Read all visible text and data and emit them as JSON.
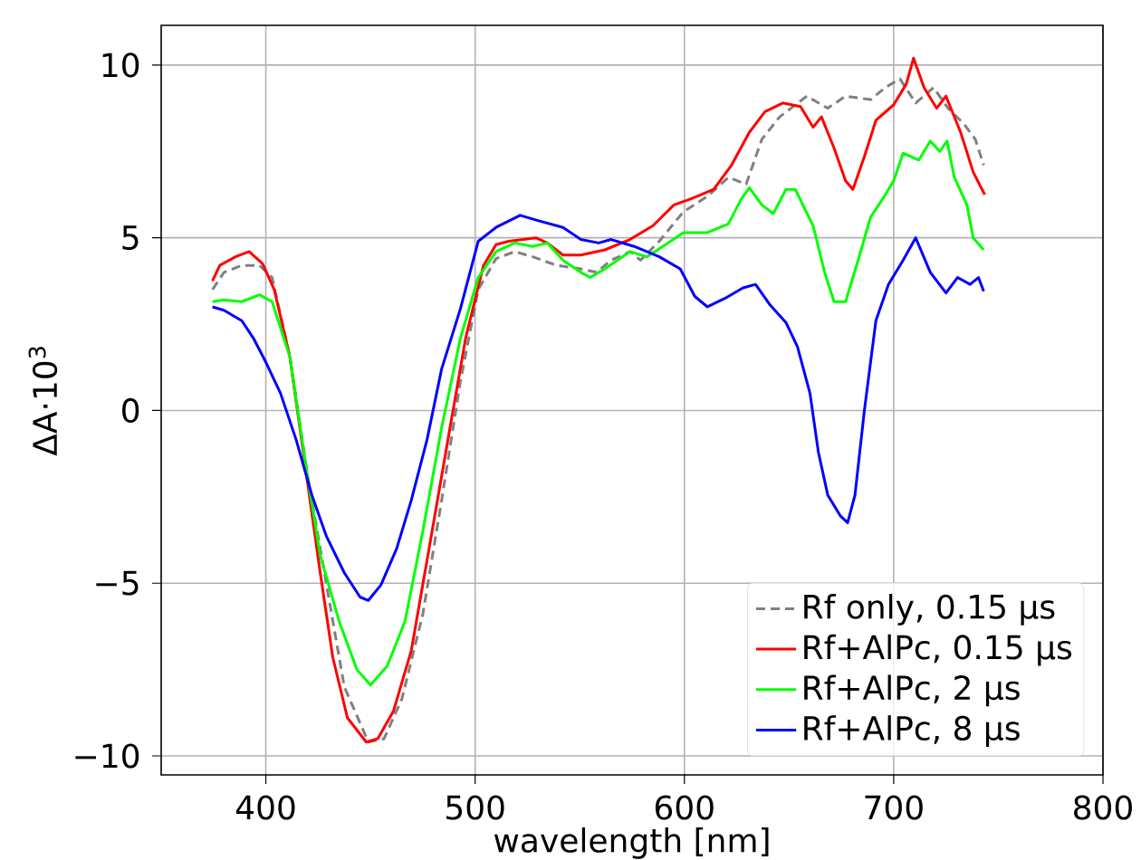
{
  "chart_data": {
    "type": "line",
    "xlabel": "wavelength [nm]",
    "ylabel": "ΔA·10$^{3}$",
    "xlim": [
      350,
      800
    ],
    "ylim": [
      -10.55,
      11.15
    ],
    "xticks": [
      400,
      500,
      600,
      700,
      800
    ],
    "yticks": [
      {
        "value": -10,
        "label": "−10"
      },
      {
        "value": -5,
        "label": "−5"
      },
      0,
      5,
      10
    ],
    "grid": true,
    "legend": "bottom right",
    "marker": "none",
    "series": [
      {
        "name": "Rf only, 0.15 μs",
        "color": "#808080",
        "line_style": "dashed",
        "x": [
          374.5,
          380,
          388.5,
          397,
          403,
          411.5,
          420,
          429,
          437.5,
          449,
          456.5,
          465,
          475,
          484,
          493,
          501.5,
          510,
          519,
          527.5,
          539,
          550.5,
          558,
          565,
          574,
          579,
          588,
          599.5,
          611,
          621,
          629.5,
          637,
          645.5,
          658.5,
          668.5,
          677,
          689,
          696,
          703,
          710.5,
          719,
          726,
          733.5,
          739,
          743
        ],
        "values": [
          3.5,
          4.0,
          4.2,
          4.2,
          3.85,
          1.55,
          -1.9,
          -5.05,
          -8.0,
          -9.6,
          -9.5,
          -8.35,
          -5.9,
          -2.6,
          0.85,
          3.5,
          4.4,
          4.6,
          4.45,
          4.2,
          4.1,
          4.0,
          4.35,
          4.6,
          4.35,
          4.9,
          5.75,
          6.2,
          6.75,
          6.55,
          7.85,
          8.5,
          9.1,
          8.75,
          9.1,
          9.0,
          9.35,
          9.6,
          8.9,
          9.35,
          8.75,
          8.3,
          7.85,
          7.1
        ]
      },
      {
        "name": "Rf+AlPc, 0.15 μs",
        "color": "#ff0000",
        "line_style": "solid",
        "x": [
          374.5,
          378,
          385.5,
          392,
          398.5,
          404,
          411.5,
          419,
          426,
          432,
          439,
          448,
          453.5,
          461,
          469.5,
          478,
          487,
          495.5,
          504,
          510,
          516,
          529,
          534.5,
          542,
          550.5,
          562,
          574,
          585,
          595,
          602,
          614,
          622.5,
          631,
          638.5,
          647,
          655.5,
          661.5,
          665.5,
          671.5,
          677,
          680.5,
          686,
          691.5,
          700,
          706,
          709.5,
          714.5,
          720.5,
          725,
          732,
          738,
          743.5
        ],
        "values": [
          3.75,
          4.2,
          4.45,
          4.6,
          4.25,
          3.5,
          1.55,
          null,
          -4.7,
          -7.15,
          -8.9,
          -9.6,
          -9.5,
          -8.7,
          -6.95,
          -4.0,
          -0.85,
          2.1,
          4.2,
          4.8,
          4.9,
          5.0,
          4.85,
          4.5,
          4.5,
          4.65,
          4.95,
          5.35,
          5.95,
          6.1,
          6.4,
          7.1,
          8.05,
          8.65,
          8.9,
          8.8,
          8.2,
          8.5,
          7.6,
          6.65,
          6.4,
          7.35,
          8.4,
          8.85,
          9.45,
          10.2,
          9.35,
          8.75,
          9.1,
          8.05,
          6.9,
          6.25
        ]
      },
      {
        "name": "Rf+AlPc, 2 μs",
        "color": "#00ff00",
        "line_style": "solid",
        "x": [
          374.5,
          380,
          388.5,
          397,
          403,
          411.5,
          419,
          426,
          435,
          443.5,
          450,
          458,
          466.5,
          475,
          484,
          493,
          501.5,
          510,
          519,
          527.5,
          534.5,
          542,
          550.5,
          555,
          562,
          574,
          582,
          591,
          599.5,
          611,
          621,
          627,
          631,
          637,
          642.5,
          648.5,
          653,
          661.5,
          667,
          671.5,
          677,
          683,
          689,
          694.5,
          700,
          704.5,
          712,
          717.5,
          722,
          725.5,
          729,
          735,
          738,
          743
        ],
        "values": [
          3.15,
          3.2,
          3.15,
          3.35,
          3.15,
          1.55,
          -1.55,
          -4.2,
          -6.1,
          -7.5,
          -7.95,
          -7.4,
          -6.1,
          -3.5,
          -0.5,
          2.1,
          3.85,
          4.6,
          4.85,
          4.75,
          4.85,
          4.35,
          4.0,
          3.85,
          4.1,
          4.6,
          4.45,
          4.8,
          5.15,
          5.15,
          5.4,
          6.1,
          6.45,
          5.95,
          5.7,
          6.4,
          6.4,
          5.35,
          4.0,
          3.15,
          3.15,
          4.35,
          5.6,
          6.1,
          6.65,
          7.45,
          7.25,
          7.8,
          7.5,
          7.8,
          6.75,
          5.95,
          5.0,
          4.65
        ]
      },
      {
        "name": "Rf+AlPc, 8 μs",
        "color": "#0000ff",
        "line_style": "solid",
        "x": [
          374.5,
          380,
          388.5,
          394,
          400,
          407,
          414.5,
          422,
          429,
          437.5,
          445,
          449,
          455,
          462.5,
          469.5,
          477,
          484,
          493,
          501.5,
          510,
          521.5,
          530,
          542,
          550.5,
          559,
          565,
          576,
          588,
          598,
          605,
          611,
          619.5,
          628,
          634,
          641,
          648.5,
          654,
          660,
          664,
          668.5,
          674.5,
          678,
          681.5,
          686,
          691.5,
          697.5,
          704.5,
          710.5,
          717.5,
          725,
          730.5,
          736.5,
          740.5,
          743
        ],
        "values": [
          3.0,
          2.9,
          2.6,
          2.1,
          1.4,
          0.5,
          -0.85,
          -2.45,
          -3.65,
          -4.7,
          -5.4,
          -5.5,
          -5.05,
          -4.0,
          -2.6,
          -0.85,
          1.2,
          2.95,
          4.9,
          5.3,
          5.65,
          5.5,
          5.3,
          4.95,
          4.85,
          4.95,
          4.75,
          4.45,
          4.1,
          3.3,
          3.0,
          3.25,
          3.55,
          3.65,
          3.05,
          2.55,
          1.85,
          0.5,
          -1.2,
          -2.45,
          -3.05,
          -3.25,
          -2.45,
          0.0,
          2.6,
          3.65,
          4.35,
          5.0,
          4.0,
          3.4,
          3.85,
          3.65,
          3.85,
          3.45
        ]
      }
    ]
  }
}
